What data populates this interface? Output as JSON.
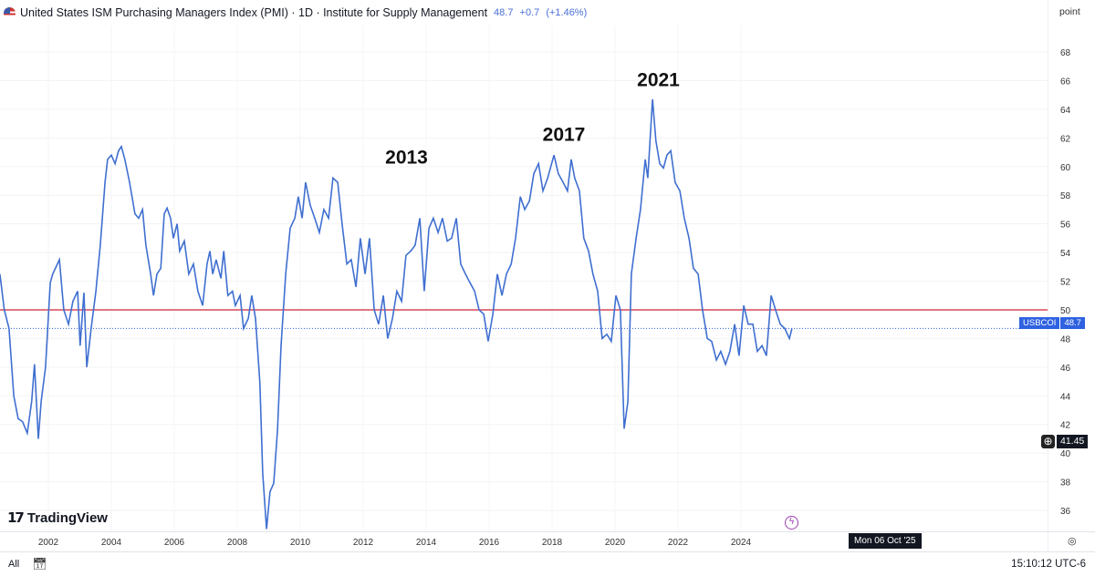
{
  "header": {
    "title": "United States ISM Purchasing Managers Index (PMI) · 1D · Institute for Supply Management",
    "last": "48.7",
    "change": "+0.7",
    "change_pct": "(+1.46%)",
    "flag_icon": "us-flag-icon"
  },
  "price_axis": {
    "unit": "point"
  },
  "series_label": {
    "symbol": "USBCOI",
    "value": "48.7",
    "color": "#2f62e0"
  },
  "crosshair": {
    "value": "41.45"
  },
  "date_label": "Mon 06 Oct '25",
  "footer": {
    "range": "All",
    "clock": "15:10:12 UTC-6"
  },
  "logo": "TradingView",
  "chart_data": {
    "type": "line",
    "title": "",
    "ylim": [
      35,
      69
    ],
    "xlim": [
      2000.46,
      2033.8
    ],
    "grid": true,
    "y_ticks": [
      "68",
      "66",
      "64",
      "62",
      "60",
      "58",
      "56",
      "54",
      "52",
      "50",
      "48",
      "46",
      "44",
      "42",
      "40",
      "38",
      "36"
    ],
    "x_ticks": [
      "2002",
      "2004",
      "2006",
      "2008",
      "2010",
      "2012",
      "2014",
      "2016",
      "2018",
      "2020",
      "2022",
      "2024"
    ],
    "reference_line": {
      "value": 50,
      "color": "#d9495a"
    },
    "last_value_line": {
      "value": 48.7,
      "color": "#2f62e0"
    },
    "line_color": "#3f6fd0",
    "annotations": [
      {
        "text": "2013",
        "x": 2012.7,
        "y": 60.2
      },
      {
        "text": "2017",
        "x": 2017.7,
        "y": 61.8
      },
      {
        "text": "2021",
        "x": 2020.7,
        "y": 65.6
      }
    ],
    "x": [
      2000.46,
      2000.6,
      2000.75,
      2000.9,
      2001.04,
      2001.18,
      2001.33,
      2001.47,
      2001.56,
      2001.68,
      2001.77,
      2001.91,
      2002.06,
      2002.14,
      2002.35,
      2002.49,
      2002.64,
      2002.78,
      2002.93,
      2003.01,
      2003.13,
      2003.22,
      2003.36,
      2003.51,
      2003.65,
      2003.8,
      2003.88,
      2004.0,
      2004.12,
      2004.23,
      2004.32,
      2004.43,
      2004.58,
      2004.75,
      2004.87,
      2004.99,
      2005.1,
      2005.25,
      2005.34,
      2005.45,
      2005.57,
      2005.68,
      2005.77,
      2005.88,
      2005.97,
      2006.09,
      2006.17,
      2006.32,
      2006.46,
      2006.61,
      2006.75,
      2006.9,
      2007.04,
      2007.13,
      2007.22,
      2007.33,
      2007.48,
      2007.57,
      2007.7,
      2007.85,
      2007.94,
      2008.09,
      2008.2,
      2008.35,
      2008.46,
      2008.58,
      2008.72,
      2008.81,
      2008.93,
      2009.04,
      2009.16,
      2009.28,
      2009.39,
      2009.54,
      2009.68,
      2009.83,
      2009.94,
      2010.06,
      2010.17,
      2010.32,
      2010.46,
      2010.61,
      2010.75,
      2010.9,
      2011.04,
      2011.19,
      2011.33,
      2011.48,
      2011.62,
      2011.77,
      2011.91,
      2012.06,
      2012.2,
      2012.35,
      2012.49,
      2012.64,
      2012.78,
      2012.93,
      2013.07,
      2013.22,
      2013.36,
      2013.51,
      2013.65,
      2013.8,
      2013.94,
      2014.09,
      2014.23,
      2014.38,
      2014.52,
      2014.67,
      2014.81,
      2014.96,
      2015.1,
      2015.25,
      2015.39,
      2015.54,
      2015.68,
      2015.83,
      2015.97,
      2016.12,
      2016.26,
      2016.41,
      2016.55,
      2016.7,
      2016.84,
      2016.99,
      2017.13,
      2017.28,
      2017.42,
      2017.57,
      2017.71,
      2017.86,
      2018.06,
      2018.2,
      2018.35,
      2018.49,
      2018.61,
      2018.72,
      2018.87,
      2019.01,
      2019.16,
      2019.3,
      2019.45,
      2019.59,
      2019.74,
      2019.88,
      2020.03,
      2020.17,
      2020.29,
      2020.41,
      2020.52,
      2020.67,
      2020.81,
      2020.96,
      2021.04,
      2021.19,
      2021.3,
      2021.42,
      2021.54,
      2021.65,
      2021.77,
      2021.91,
      2022.06,
      2022.2,
      2022.35,
      2022.49,
      2022.64,
      2022.78,
      2022.93,
      2023.07,
      2023.22,
      2023.36,
      2023.51,
      2023.65,
      2023.8,
      2023.94,
      2024.09,
      2024.23,
      2024.38,
      2024.52,
      2024.67,
      2024.81,
      2024.96,
      2025.1,
      2025.25,
      2025.39,
      2025.54,
      2025.62
    ],
    "y": [
      52.5,
      50,
      48.7,
      44,
      42.4,
      42.2,
      41.4,
      43.6,
      46.2,
      41,
      43.6,
      46,
      51.9,
      52.5,
      53.5,
      50,
      49,
      50.6,
      51.3,
      47.5,
      51.2,
      46,
      48.7,
      51.3,
      54.5,
      58.9,
      60.5,
      60.8,
      60.2,
      61.1,
      61.4,
      60.5,
      58.9,
      56.7,
      56.4,
      57,
      54.5,
      52.5,
      51,
      52.5,
      52.9,
      56.7,
      57.1,
      56.4,
      55,
      56,
      54.1,
      54.8,
      52.5,
      53.2,
      51.3,
      50.3,
      53.2,
      54.1,
      52.5,
      53.5,
      52.2,
      54.1,
      51,
      51.3,
      50.3,
      51,
      48.7,
      49.4,
      51,
      49.4,
      44.9,
      38.6,
      34.7,
      37.3,
      37.9,
      41.7,
      47.5,
      52.5,
      55.7,
      56.4,
      57.9,
      56.4,
      58.9,
      57.3,
      56.4,
      55.4,
      57,
      56.4,
      59.2,
      58.9,
      56,
      53.2,
      53.5,
      51.6,
      55,
      52.5,
      55,
      50,
      49,
      51,
      48,
      49.4,
      51.3,
      50.6,
      53.8,
      54.1,
      54.5,
      56.4,
      51.3,
      55.7,
      56.4,
      55.4,
      56.4,
      54.8,
      55,
      56.4,
      53.2,
      52.5,
      51.9,
      51.3,
      50,
      49.7,
      47.8,
      49.7,
      52.5,
      51,
      52.5,
      53.2,
      55,
      57.9,
      57,
      57.6,
      59.5,
      60.2,
      58.3,
      59.2,
      60.8,
      59.5,
      58.9,
      58.3,
      60.5,
      59.2,
      58.3,
      55,
      54.1,
      52.5,
      51.3,
      48,
      48.3,
      47.8,
      51,
      50,
      41.7,
      43.6,
      52.5,
      55,
      57,
      60.5,
      59.2,
      64.7,
      61.8,
      60.2,
      59.9,
      60.8,
      61.1,
      58.9,
      58.3,
      56.4,
      55,
      52.9,
      52.5,
      50,
      48,
      47.8,
      46.5,
      47.1,
      46.2,
      47.1,
      49,
      46.8,
      50.3,
      49,
      49,
      47.1,
      47.5,
      46.8,
      51,
      50,
      49,
      48.7,
      48,
      48.7
    ]
  }
}
